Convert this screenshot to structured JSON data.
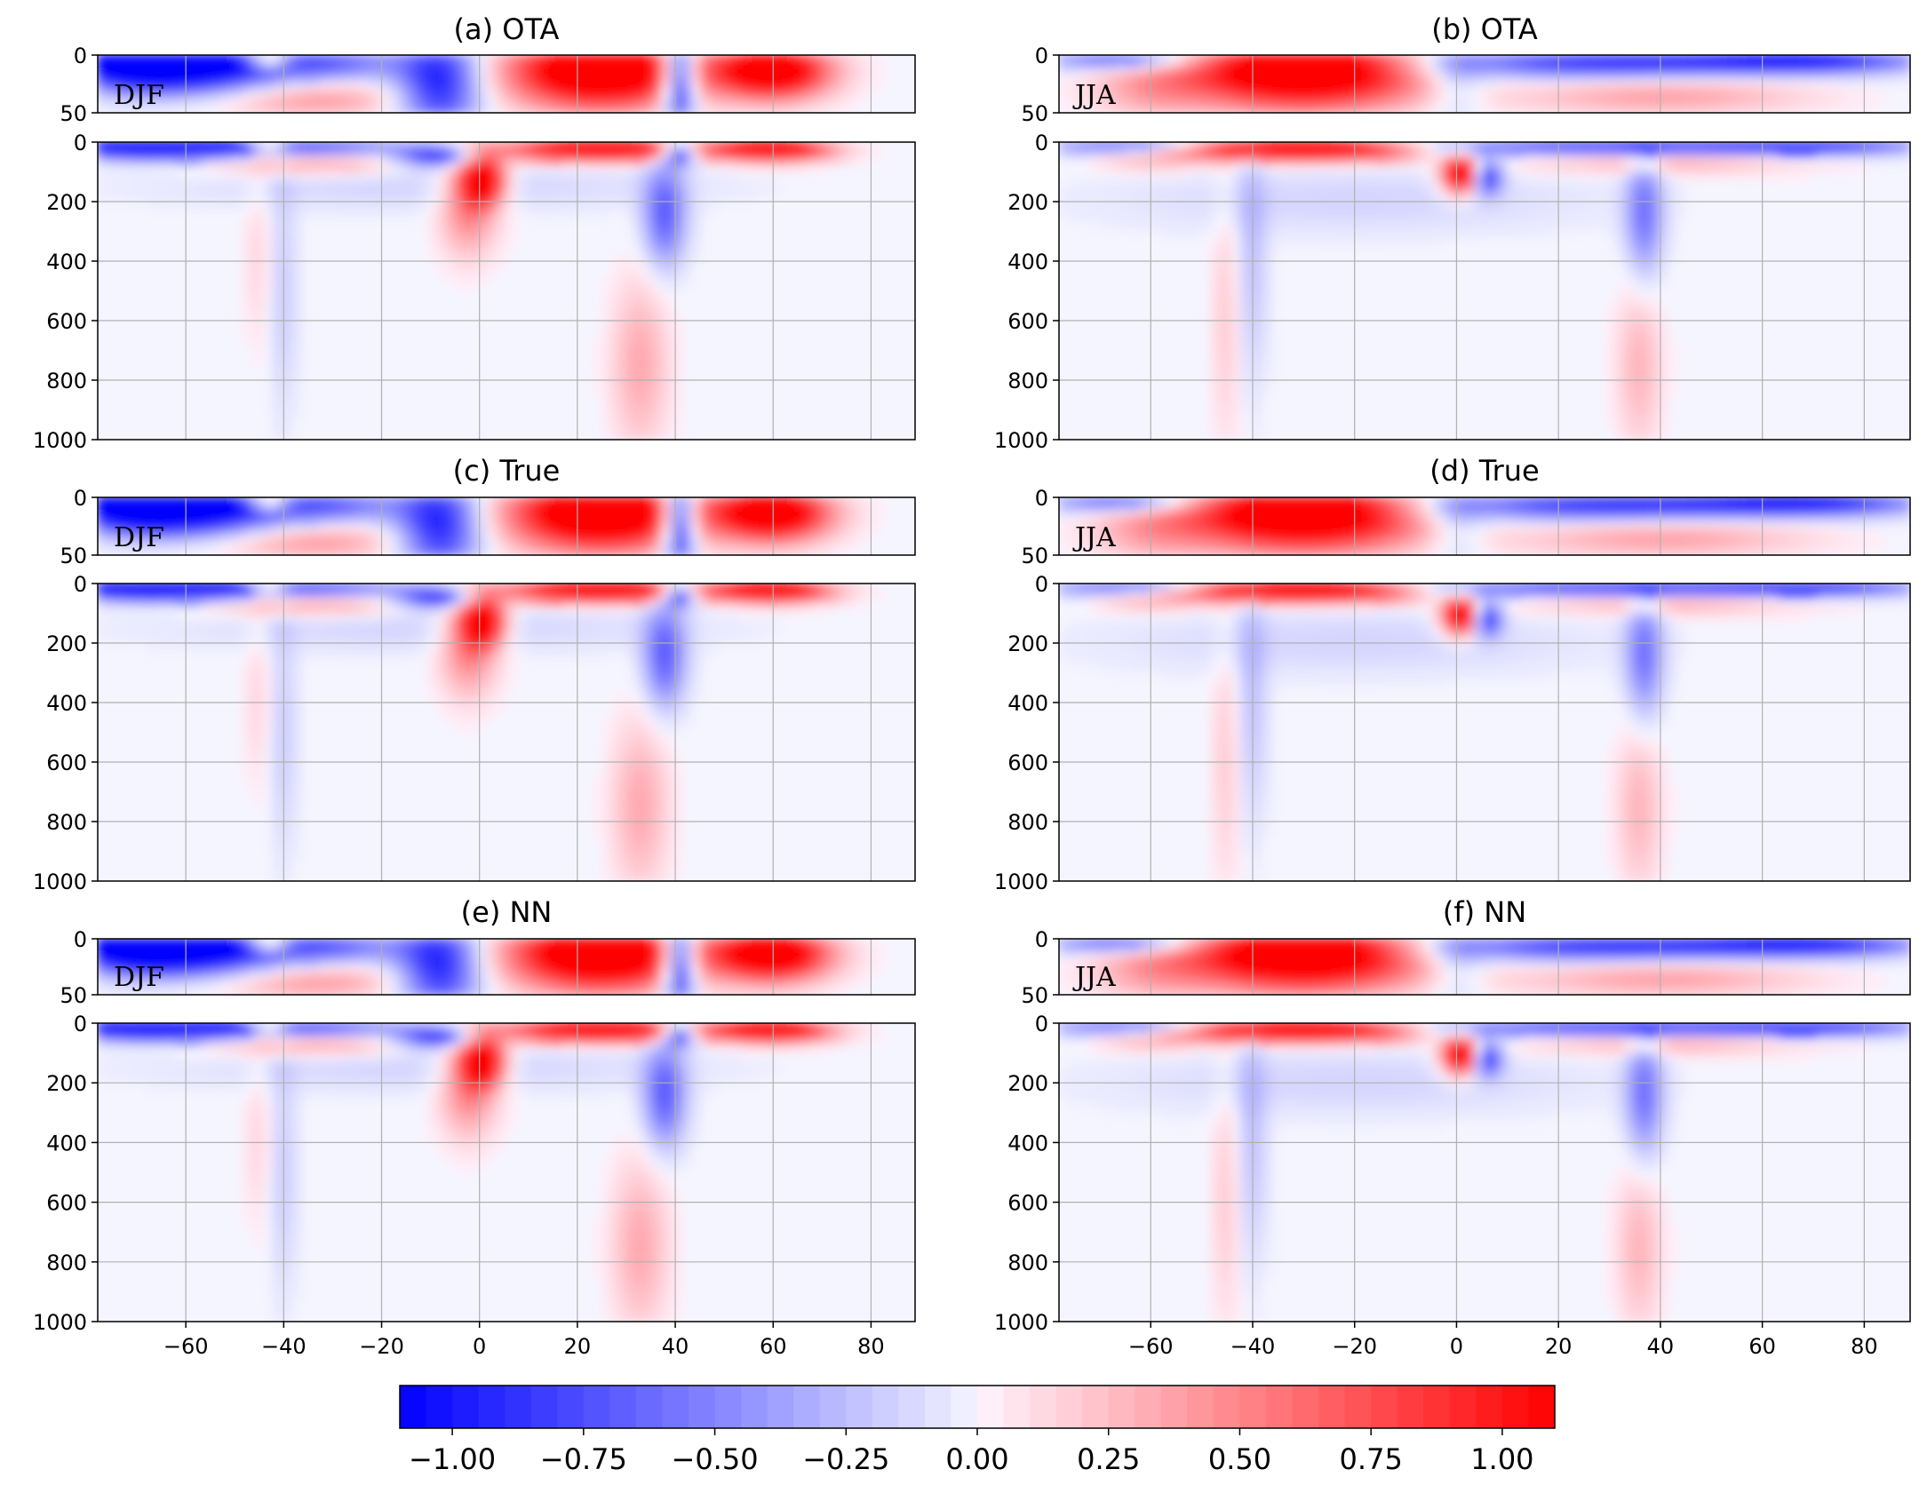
{
  "chart_data": {
    "type": "heatmap",
    "colormap": "bwr",
    "colors": {
      "negative": "#0000ff",
      "zero": "#f5f5ff",
      "positive": "#ff0000",
      "grid": "#b0b0b0"
    },
    "x_range": [
      -78,
      89
    ],
    "x_ticks": [
      -60,
      -40,
      -20,
      0,
      20,
      40,
      60,
      80
    ],
    "x_tick_labels": [
      "−60",
      "−40",
      "−20",
      "0",
      "20",
      "40",
      "60",
      "80"
    ],
    "x_ticks_f": [
      -60,
      -40,
      -20,
      0,
      20
    ],
    "x_tick_labels_f": [
      "−60",
      "−40",
      "−20",
      "0",
      "20"
    ],
    "x_ticks_f_right": [
      40,
      60,
      80
    ],
    "x_tick_labels_f_right": [
      "40",
      "60",
      "80"
    ],
    "upper_depth_range": [
      0,
      50
    ],
    "upper_ticks": [
      "0",
      "50"
    ],
    "lower_depth_range": [
      0,
      1000
    ],
    "lower_ticks": [
      "0",
      "200",
      "400",
      "600",
      "800",
      "1000"
    ],
    "panels": [
      {
        "title": "(a) OTA",
        "season": "DJF",
        "method": "OTA"
      },
      {
        "title": "(b) OTA",
        "season": "JJA",
        "method": "OTA"
      },
      {
        "title": "(c) True",
        "season": "DJF",
        "method": "True"
      },
      {
        "title": "(d) True",
        "season": "JJA",
        "method": "True"
      },
      {
        "title": "(e) NN",
        "season": "DJF",
        "method": "NN"
      },
      {
        "title": "(f) NN",
        "season": "JJA",
        "method": "NN"
      }
    ],
    "features": {
      "DJF": [
        {
          "x": -70,
          "zu": 10,
          "wx": 9,
          "wz": 14,
          "a": -1.3
        },
        {
          "x": -55,
          "zu": 12,
          "wx": 12,
          "wz": 16,
          "a": -1.1
        },
        {
          "x": -30,
          "zu": 8,
          "wx": 10,
          "wz": 12,
          "a": -0.6
        },
        {
          "x": -35,
          "zu": 38,
          "wx": 14,
          "wz": 12,
          "a": 0.45
        },
        {
          "x": -43,
          "zu": 5,
          "wx": 3,
          "wz": 6,
          "a": 0.9
        },
        {
          "x": -8,
          "zu": 25,
          "wx": 6,
          "wz": 30,
          "a": -1.0
        },
        {
          "x": 25,
          "zu": 15,
          "wx": 13,
          "wz": 22,
          "a": 1.6
        },
        {
          "x": 60,
          "zu": 15,
          "wx": 8,
          "wz": 16,
          "a": 1.5
        },
        {
          "x": 41,
          "zu": 20,
          "wx": 2.5,
          "wz": 30,
          "a": -1.3
        },
        {
          "x": 1,
          "z": 130,
          "wx": 3,
          "wz": 55,
          "a": 1.4
        },
        {
          "x": -2,
          "z": 200,
          "wx": 4,
          "wz": 120,
          "a": 0.6
        },
        {
          "x": 38,
          "z": 250,
          "wx": 3,
          "wz": 120,
          "a": -0.7
        },
        {
          "x": 33,
          "z": 750,
          "wx": 4,
          "wz": 200,
          "a": 0.35
        },
        {
          "x": -40,
          "z": 500,
          "wx": 2,
          "wz": 300,
          "a": -0.2
        },
        {
          "x": -45,
          "z": 400,
          "wx": 2,
          "wz": 200,
          "a": 0.15
        },
        {
          "x": -10,
          "z": 150,
          "wx": 40,
          "wz": 60,
          "a": -0.15
        }
      ],
      "JJA": [
        {
          "x": -30,
          "zu": 15,
          "wx": 16,
          "wz": 22,
          "a": 1.6
        },
        {
          "x": -65,
          "zu": 5,
          "wx": 10,
          "wz": 6,
          "a": -0.8
        },
        {
          "x": -60,
          "zu": 30,
          "wx": 8,
          "wz": 18,
          "a": 0.3
        },
        {
          "x": 30,
          "zu": 8,
          "wx": 25,
          "wz": 10,
          "a": -0.9
        },
        {
          "x": 70,
          "zu": 5,
          "wx": 15,
          "wz": 8,
          "a": -0.9
        },
        {
          "x": 40,
          "zu": 35,
          "wx": 20,
          "wz": 12,
          "a": 0.4
        },
        {
          "x": 0,
          "zu": 20,
          "wx": 4,
          "wz": 30,
          "a": -0.3
        },
        {
          "x": 1,
          "z": 110,
          "wx": 2.5,
          "wz": 45,
          "a": 1.5
        },
        {
          "x": 6,
          "z": 120,
          "wx": 2,
          "wz": 40,
          "a": -1.0
        },
        {
          "x": 37,
          "z": 250,
          "wx": 2.5,
          "wz": 150,
          "a": -0.6
        },
        {
          "x": 36,
          "z": 750,
          "wx": 3,
          "wz": 200,
          "a": 0.3
        },
        {
          "x": -40,
          "z": 400,
          "wx": 2,
          "wz": 300,
          "a": -0.25
        },
        {
          "x": -45,
          "z": 600,
          "wx": 2,
          "wz": 300,
          "a": 0.2
        },
        {
          "x": -20,
          "z": 200,
          "wx": 35,
          "wz": 80,
          "a": -0.15
        }
      ]
    },
    "colorbar": {
      "vmin": -1.1,
      "vmax": 1.1,
      "levels": 44,
      "ticks": [
        -1.0,
        -0.75,
        -0.5,
        -0.25,
        0.0,
        0.25,
        0.5,
        0.75,
        1.0
      ],
      "tick_labels": [
        "−1.00",
        "−0.75",
        "−0.50",
        "−0.25",
        "0.00",
        "0.25",
        "0.50",
        "0.75",
        "1.00"
      ]
    }
  }
}
